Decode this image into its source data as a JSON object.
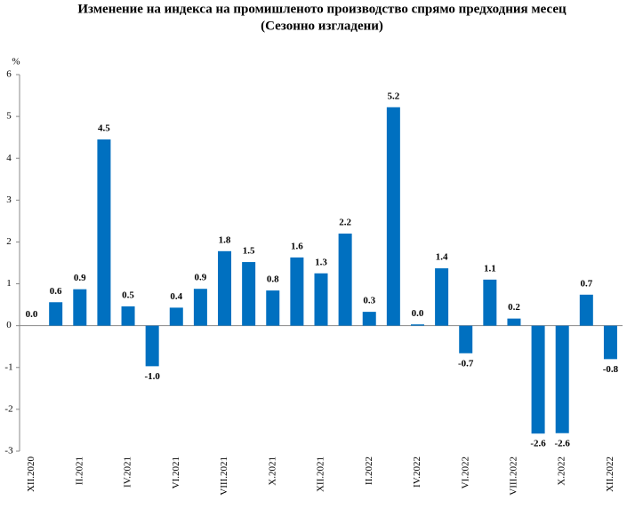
{
  "chart_data": {
    "type": "bar",
    "title": "Изменение на индекса на промишленото производство спрямо предходния месец",
    "subtitle": "(Сезонно изгладени)",
    "y_label": "%",
    "categories": [
      "XII.2020",
      null,
      "II.2021",
      null,
      "IV.2021",
      null,
      "VI.2021",
      null,
      "VIII.2021",
      null,
      "X.2021",
      null,
      "XII.2021",
      null,
      "II.2022",
      null,
      "IV.2022",
      null,
      "VI.2022",
      null,
      "VIII.2022",
      null,
      "X.2022",
      null,
      "XII.2022"
    ],
    "values": [
      0,
      0.56,
      0.87,
      4.45,
      0.46,
      -0.97,
      0.43,
      0.88,
      1.78,
      1.52,
      0.84,
      1.63,
      1.25,
      2.2,
      0.33,
      5.22,
      0.03,
      1.37,
      -0.66,
      1.1,
      0.17,
      -2.58,
      -2.57,
      0.74,
      -0.8
    ],
    "value_labels": [
      "0.0",
      "0.6",
      "0.9",
      "4.5",
      "0.5",
      "-1.0",
      "0.4",
      "0.9",
      "1.8",
      "1.5",
      "0.8",
      "1.6",
      "1.3",
      "2.2",
      "0.3",
      "5.2",
      "0.0",
      "1.4",
      "-0.7",
      "1.1",
      "0.2",
      "-2.6",
      "-2.6",
      "0.7",
      "-0.8"
    ],
    "color": "#0070c0",
    "ylim": [
      -3,
      6
    ],
    "yticks": [
      -3,
      -2,
      -1,
      0,
      1,
      2,
      3,
      4,
      5,
      6
    ],
    "grid": false
  }
}
